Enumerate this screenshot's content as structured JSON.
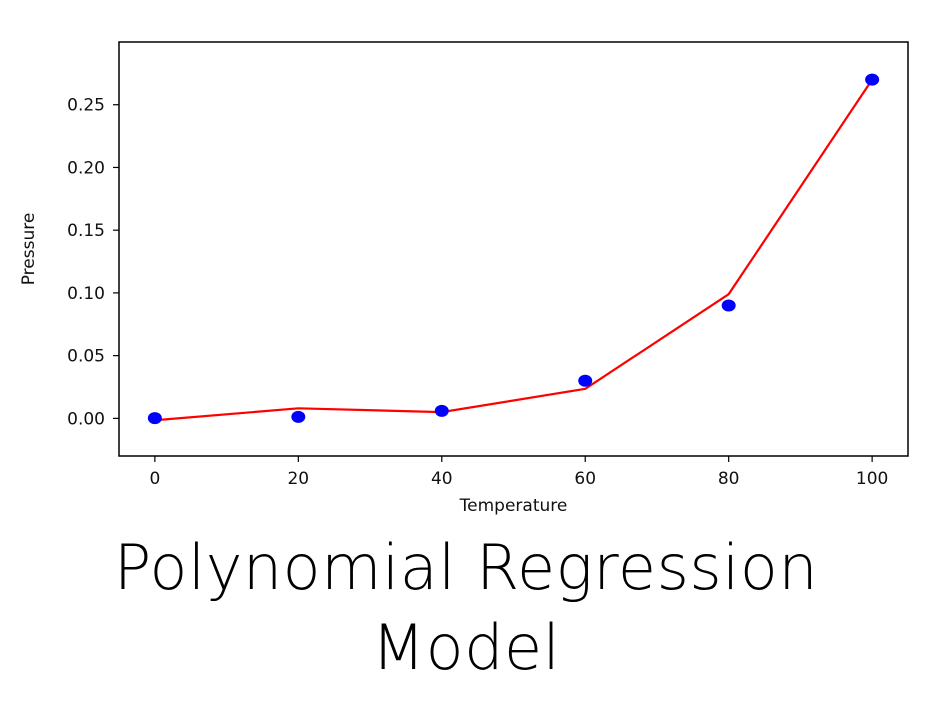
{
  "chart_data": {
    "type": "scatter",
    "xlabel": "Temperature",
    "ylabel": "Pressure",
    "xlim": [
      -5,
      105
    ],
    "ylim": [
      -0.03,
      0.3
    ],
    "x_ticks": [
      0,
      20,
      40,
      60,
      80,
      100
    ],
    "y_ticks": [
      0.0,
      0.05,
      0.1,
      0.15,
      0.2,
      0.25
    ],
    "x_tick_labels": [
      "0",
      "20",
      "40",
      "60",
      "80",
      "100"
    ],
    "y_tick_labels": [
      "0.00",
      "0.05",
      "0.10",
      "0.15",
      "0.20",
      "0.25"
    ],
    "grid": false,
    "series": [
      {
        "kind": "points",
        "color": "#0000ff",
        "x": [
          0,
          20,
          40,
          60,
          80,
          100
        ],
        "y": [
          0.0002,
          0.0012,
          0.006,
          0.03,
          0.09,
          0.27
        ]
      },
      {
        "kind": "line",
        "color": "#ff0000",
        "x": [
          0,
          20,
          40,
          60,
          80,
          100
        ],
        "y": [
          -0.0015,
          0.008,
          0.005,
          0.0235,
          0.099,
          0.27
        ]
      }
    ]
  },
  "caption": {
    "line1": "Polynomial Regression",
    "line2": "Model"
  }
}
